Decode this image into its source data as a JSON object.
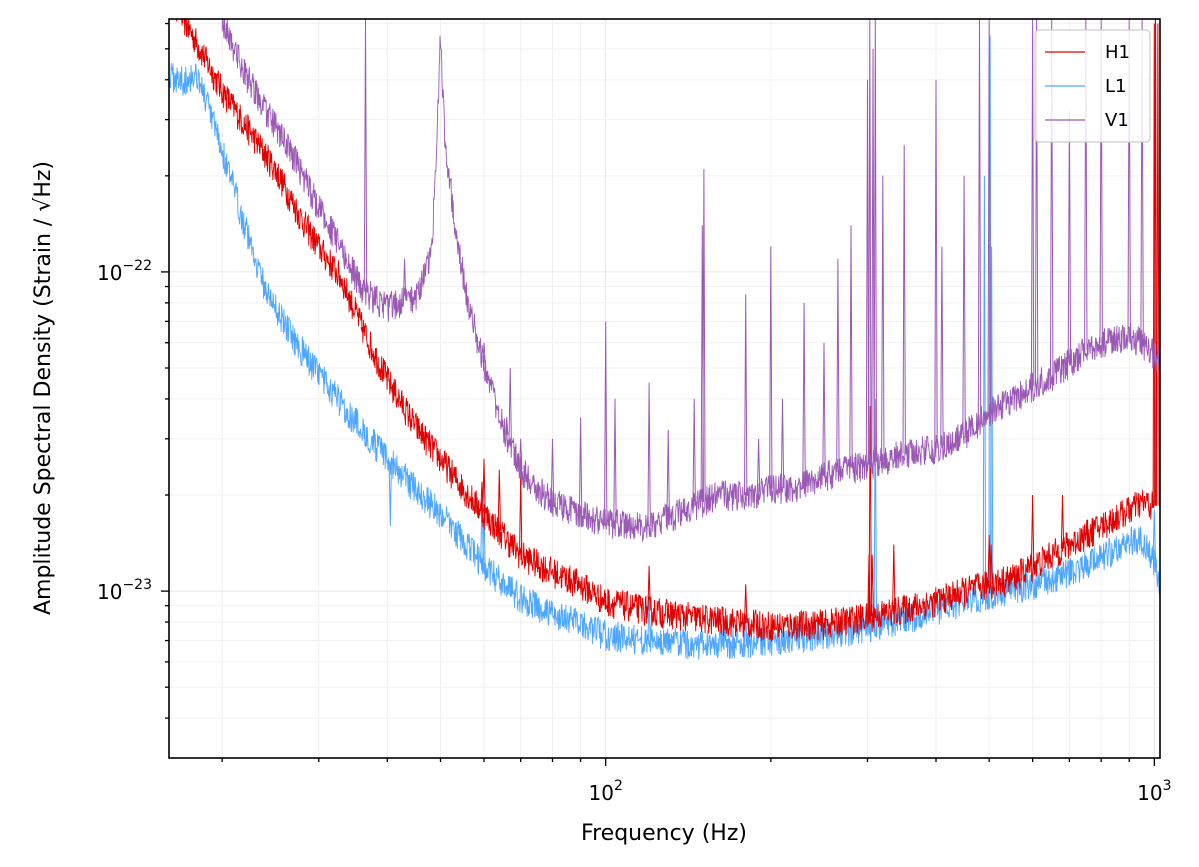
{
  "chart_data": {
    "type": "line",
    "xlabel": "Frequency (Hz)",
    "ylabel_prefix": "Amplitude Spectral Density (Strain / ",
    "ylabel_radical": "√",
    "ylabel_unit": "Hz",
    "ylabel_suffix": ")",
    "xscale": "log",
    "yscale": "log",
    "xlim": [
      16,
      1024
    ],
    "ylim": [
      3e-24,
      6.2e-22
    ],
    "grid": "on (major and minor, light)",
    "legend_position": "top-right",
    "x_major_ticks": [
      {
        "value": 100,
        "base": "10",
        "exp": "2"
      },
      {
        "value": 1000,
        "base": "10",
        "exp": "3"
      }
    ],
    "y_major_ticks": [
      {
        "value": 1e-23,
        "base": "10",
        "exp": "−23"
      },
      {
        "value": 1e-22,
        "base": "10",
        "exp": "−22"
      }
    ],
    "series": [
      {
        "name": "H1",
        "color": "#e00000",
        "points": [
          [
            16,
            7.5e-22
          ],
          [
            18,
            5.2e-22
          ],
          [
            20,
            3.7e-22
          ],
          [
            22,
            2.9e-22
          ],
          [
            25,
            2.1e-22
          ],
          [
            28,
            1.45e-22
          ],
          [
            30,
            1.2e-22
          ],
          [
            33,
            9.5e-23
          ],
          [
            36,
            6.7e-23
          ],
          [
            38,
            5.5e-23
          ],
          [
            40,
            4.6e-23
          ],
          [
            45,
            3.3e-23
          ],
          [
            50,
            2.6e-23
          ],
          [
            55,
            2.1e-23
          ],
          [
            60,
            1.75e-23
          ],
          [
            65,
            1.5e-23
          ],
          [
            70,
            1.3e-23
          ],
          [
            80,
            1.15e-23
          ],
          [
            90,
            1.05e-23
          ],
          [
            100,
            9.3e-24
          ],
          [
            120,
            8.7e-24
          ],
          [
            150,
            8.2e-24
          ],
          [
            200,
            7.8e-24
          ],
          [
            250,
            7.9e-24
          ],
          [
            300,
            8.3e-24
          ],
          [
            350,
            8.8e-24
          ],
          [
            400,
            9.3e-24
          ],
          [
            450,
            1e-23
          ],
          [
            500,
            1.05e-23
          ],
          [
            550,
            1.1e-23
          ],
          [
            600,
            1.2e-23
          ],
          [
            650,
            1.3e-23
          ],
          [
            700,
            1.4e-23
          ],
          [
            750,
            1.5e-23
          ],
          [
            800,
            1.6e-23
          ],
          [
            850,
            1.7e-23
          ],
          [
            900,
            1.8e-23
          ],
          [
            950,
            1.9e-23
          ],
          [
            1000,
            1.85e-23
          ]
        ],
        "peaks": [
          [
            36,
            6.5e-23
          ],
          [
            59.5,
            2.2e-23
          ],
          [
            60,
            2.6e-23
          ],
          [
            64,
            2.4e-23
          ],
          [
            70,
            2.3e-23
          ],
          [
            120,
            1.2e-23
          ],
          [
            180,
            1.05e-23
          ],
          [
            302,
            1.3e-23
          ],
          [
            303.5,
            3.8e-23
          ],
          [
            306,
            1.3e-23
          ],
          [
            335,
            1.4e-23
          ],
          [
            500,
            1.5e-23
          ],
          [
            504,
            1.4e-23
          ],
          [
            600,
            2e-23
          ],
          [
            680,
            2e-23
          ],
          [
            1000,
            6e-22
          ],
          [
            1005,
            8e-22
          ],
          [
            1015,
            6e-22
          ]
        ]
      },
      {
        "name": "L1",
        "color": "#4da6ff",
        "points": [
          [
            16,
            4.1e-22
          ],
          [
            17,
            4e-22
          ],
          [
            18,
            4.2e-22
          ],
          [
            20,
            2.4e-22
          ],
          [
            22,
            1.4e-22
          ],
          [
            24,
            8.8e-23
          ],
          [
            27,
            6.2e-23
          ],
          [
            30,
            4.8e-23
          ],
          [
            35,
            3.4e-23
          ],
          [
            40,
            2.6e-23
          ],
          [
            45,
            2.1e-23
          ],
          [
            50,
            1.75e-23
          ],
          [
            55,
            1.45e-23
          ],
          [
            60,
            1.2e-23
          ],
          [
            70,
            9.5e-24
          ],
          [
            80,
            8.5e-24
          ],
          [
            90,
            7.9e-24
          ],
          [
            100,
            7.3e-24
          ],
          [
            120,
            7e-24
          ],
          [
            150,
            6.8e-24
          ],
          [
            200,
            7e-24
          ],
          [
            250,
            7.3e-24
          ],
          [
            300,
            7.7e-24
          ],
          [
            350,
            8.2e-24
          ],
          [
            400,
            8.7e-24
          ],
          [
            450,
            9.3e-24
          ],
          [
            500,
            9.8e-24
          ],
          [
            600,
            1.05e-23
          ],
          [
            700,
            1.15e-23
          ],
          [
            800,
            1.28e-23
          ],
          [
            900,
            1.45e-23
          ],
          [
            950,
            1.45e-23
          ],
          [
            1000,
            1.25e-23
          ],
          [
            1024,
            1.05e-23
          ]
        ],
        "peaks": [
          [
            40.5,
            1.6e-23
          ],
          [
            59.5,
            2.2e-23
          ],
          [
            60,
            1.8e-23
          ],
          [
            120,
            9.5e-24
          ],
          [
            180,
            8.5e-24
          ],
          [
            310,
            4e-23
          ],
          [
            490,
            2e-22
          ],
          [
            502,
            5.5e-22
          ],
          [
            505,
            1.2e-22
          ],
          [
            1000,
            1.8e-23
          ]
        ]
      },
      {
        "name": "V1",
        "color": "#9b59b6",
        "points": [
          [
            20,
            6.2e-22
          ],
          [
            22,
            4.2e-22
          ],
          [
            24,
            3.2e-22
          ],
          [
            27,
            2.3e-22
          ],
          [
            30,
            1.6e-22
          ],
          [
            33,
            1.18e-22
          ],
          [
            36,
            8.8e-23
          ],
          [
            40,
            7.8e-23
          ],
          [
            45,
            8.4e-23
          ],
          [
            48,
            1.1e-22
          ],
          [
            49,
            2e-22
          ],
          [
            50,
            5.5e-22
          ],
          [
            51,
            2.5e-22
          ],
          [
            53,
            1.5e-22
          ],
          [
            56,
            8e-23
          ],
          [
            60,
            5.2e-23
          ],
          [
            65,
            3.3e-23
          ],
          [
            70,
            2.4e-23
          ],
          [
            80,
            1.9e-23
          ],
          [
            90,
            1.75e-23
          ],
          [
            100,
            1.65e-23
          ],
          [
            110,
            1.6e-23
          ],
          [
            120,
            1.6e-23
          ],
          [
            140,
            1.8e-23
          ],
          [
            160,
            2e-23
          ],
          [
            180,
            2e-23
          ],
          [
            200,
            2.1e-23
          ],
          [
            220,
            2.1e-23
          ],
          [
            250,
            2.3e-23
          ],
          [
            300,
            2.5e-23
          ],
          [
            350,
            2.7e-23
          ],
          [
            400,
            2.8e-23
          ],
          [
            450,
            3.1e-23
          ],
          [
            500,
            3.6e-23
          ],
          [
            550,
            4e-23
          ],
          [
            600,
            4.4e-23
          ],
          [
            650,
            4.7e-23
          ],
          [
            700,
            5.2e-23
          ],
          [
            750,
            5.7e-23
          ],
          [
            800,
            6e-23
          ],
          [
            850,
            6.2e-23
          ],
          [
            900,
            6.3e-23
          ],
          [
            950,
            6e-23
          ],
          [
            1000,
            5.5e-23
          ],
          [
            1024,
            5.2e-23
          ]
        ],
        "peaks": [
          [
            36.5,
            6.2e-22
          ],
          [
            38,
            9e-23
          ],
          [
            43,
            1.1e-22
          ],
          [
            60,
            6e-23
          ],
          [
            66,
            3.5e-23
          ],
          [
            67,
            5e-23
          ],
          [
            70,
            3e-23
          ],
          [
            80,
            3e-23
          ],
          [
            90,
            3.5e-23
          ],
          [
            100,
            7e-23
          ],
          [
            104,
            4e-23
          ],
          [
            120,
            4.5e-23
          ],
          [
            130,
            3.2e-23
          ],
          [
            145,
            4e-23
          ],
          [
            150,
            1.4e-22
          ],
          [
            151,
            2.1e-22
          ],
          [
            180,
            8.5e-23
          ],
          [
            190,
            3e-23
          ],
          [
            200,
            1.2e-22
          ],
          [
            210,
            4e-23
          ],
          [
            230,
            8e-23
          ],
          [
            250,
            6e-23
          ],
          [
            265,
            1.1e-22
          ],
          [
            280,
            1.4e-22
          ],
          [
            300,
            4e-22
          ],
          [
            303,
            6.2e-22
          ],
          [
            307,
            5e-22
          ],
          [
            310,
            6.2e-22
          ],
          [
            320,
            2e-22
          ],
          [
            350,
            2.5e-22
          ],
          [
            400,
            4e-22
          ],
          [
            410,
            1.2e-22
          ],
          [
            450,
            2e-22
          ],
          [
            480,
            6.2e-22
          ],
          [
            500,
            6.2e-22
          ],
          [
            600,
            6.2e-22
          ],
          [
            610,
            6.2e-22
          ],
          [
            650,
            6.2e-22
          ],
          [
            700,
            3.2e-22
          ],
          [
            750,
            6.2e-22
          ],
          [
            800,
            6.2e-22
          ],
          [
            900,
            6.2e-22
          ],
          [
            950,
            6.2e-22
          ]
        ]
      }
    ]
  }
}
